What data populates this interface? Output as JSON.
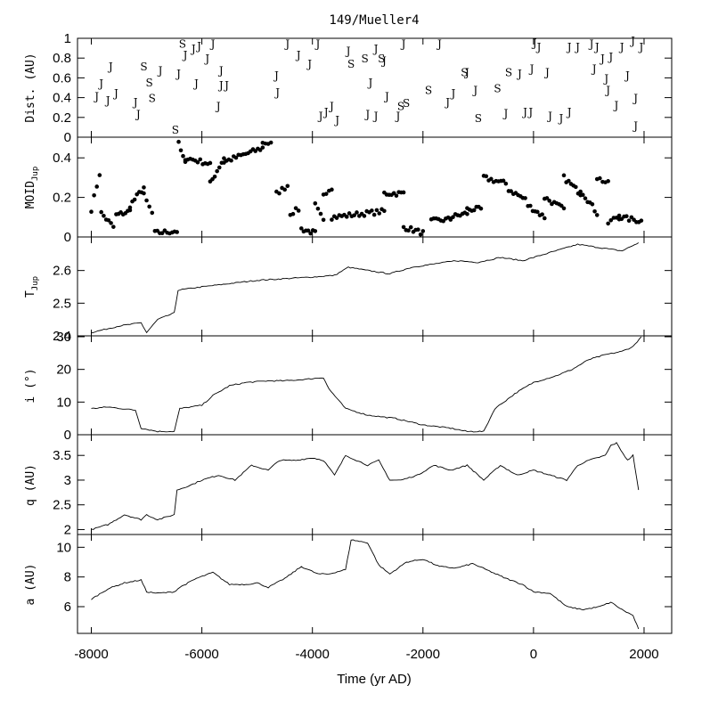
{
  "chart_data": {
    "type": "line",
    "title": "149/Mueller4",
    "xlabel": "Time (yr AD)",
    "xlim": [
      -8250,
      2500
    ],
    "xticks": [
      "-8000",
      "-6000",
      "-4000",
      "-2000",
      "0",
      "2000"
    ],
    "panels": [
      {
        "id": "encounters",
        "type": "scatter",
        "ylabel": "Dist. (AU)",
        "ylim": [
          0,
          1
        ],
        "yticks": [
          "0",
          "0.2",
          "0.4",
          "0.6",
          "0.8",
          "1"
        ],
        "markers_note": "J = Jupiter encounter, S = Saturn encounter",
        "points": [
          {
            "x": -7900,
            "y": 0.42,
            "l": "J"
          },
          {
            "x": -7820,
            "y": 0.55,
            "l": "J"
          },
          {
            "x": -7700,
            "y": 0.38,
            "l": "J"
          },
          {
            "x": -7650,
            "y": 0.72,
            "l": "J"
          },
          {
            "x": -7550,
            "y": 0.45,
            "l": "J"
          },
          {
            "x": -7200,
            "y": 0.36,
            "l": "J"
          },
          {
            "x": -7150,
            "y": 0.24,
            "l": "J"
          },
          {
            "x": -7050,
            "y": 0.72,
            "l": "S"
          },
          {
            "x": -6950,
            "y": 0.56,
            "l": "S"
          },
          {
            "x": -6900,
            "y": 0.4,
            "l": "S"
          },
          {
            "x": -6750,
            "y": 0.68,
            "l": "J"
          },
          {
            "x": -6480,
            "y": 0.08,
            "l": "S"
          },
          {
            "x": -6420,
            "y": 0.65,
            "l": "J"
          },
          {
            "x": -6350,
            "y": 0.95,
            "l": "S"
          },
          {
            "x": -6300,
            "y": 0.84,
            "l": "J"
          },
          {
            "x": -6150,
            "y": 0.9,
            "l": "J"
          },
          {
            "x": -6050,
            "y": 0.93,
            "l": "J"
          },
          {
            "x": -6100,
            "y": 0.55,
            "l": "J"
          },
          {
            "x": -5900,
            "y": 0.8,
            "l": "J"
          },
          {
            "x": -5800,
            "y": 0.95,
            "l": "J"
          },
          {
            "x": -5700,
            "y": 0.32,
            "l": "J"
          },
          {
            "x": -5650,
            "y": 0.68,
            "l": "J"
          },
          {
            "x": -5650,
            "y": 0.53,
            "l": "J"
          },
          {
            "x": -5550,
            "y": 0.53,
            "l": "J"
          },
          {
            "x": -4650,
            "y": 0.63,
            "l": "J"
          },
          {
            "x": -4630,
            "y": 0.46,
            "l": "J"
          },
          {
            "x": -4450,
            "y": 0.95,
            "l": "J"
          },
          {
            "x": -4250,
            "y": 0.84,
            "l": "J"
          },
          {
            "x": -4050,
            "y": 0.75,
            "l": "J"
          },
          {
            "x": -3900,
            "y": 0.95,
            "l": "J"
          },
          {
            "x": -3850,
            "y": 0.22,
            "l": "J"
          },
          {
            "x": -3750,
            "y": 0.26,
            "l": "J"
          },
          {
            "x": -3650,
            "y": 0.32,
            "l": "J"
          },
          {
            "x": -3550,
            "y": 0.18,
            "l": "J"
          },
          {
            "x": -3350,
            "y": 0.88,
            "l": "J"
          },
          {
            "x": -3300,
            "y": 0.75,
            "l": "S"
          },
          {
            "x": -3050,
            "y": 0.8,
            "l": "S"
          },
          {
            "x": -2950,
            "y": 0.56,
            "l": "J"
          },
          {
            "x": -3000,
            "y": 0.24,
            "l": "J"
          },
          {
            "x": -2850,
            "y": 0.22,
            "l": "J"
          },
          {
            "x": -2850,
            "y": 0.9,
            "l": "J"
          },
          {
            "x": -2750,
            "y": 0.8,
            "l": "S"
          },
          {
            "x": -2700,
            "y": 0.78,
            "l": "J"
          },
          {
            "x": -2650,
            "y": 0.42,
            "l": "J"
          },
          {
            "x": -2450,
            "y": 0.22,
            "l": "J"
          },
          {
            "x": -2400,
            "y": 0.32,
            "l": "S"
          },
          {
            "x": -2300,
            "y": 0.35,
            "l": "S"
          },
          {
            "x": -2350,
            "y": 0.95,
            "l": "J"
          },
          {
            "x": -1900,
            "y": 0.48,
            "l": "S"
          },
          {
            "x": -1700,
            "y": 0.95,
            "l": "J"
          },
          {
            "x": -1550,
            "y": 0.36,
            "l": "J"
          },
          {
            "x": -1450,
            "y": 0.45,
            "l": "J"
          },
          {
            "x": -1250,
            "y": 0.66,
            "l": "S"
          },
          {
            "x": -1200,
            "y": 0.66,
            "l": "J"
          },
          {
            "x": -1050,
            "y": 0.48,
            "l": "J"
          },
          {
            "x": -1000,
            "y": 0.2,
            "l": "S"
          },
          {
            "x": -650,
            "y": 0.5,
            "l": "S"
          },
          {
            "x": -500,
            "y": 0.25,
            "l": "J"
          },
          {
            "x": -450,
            "y": 0.66,
            "l": "S"
          },
          {
            "x": -250,
            "y": 0.65,
            "l": "J"
          },
          {
            "x": -150,
            "y": 0.26,
            "l": "J"
          },
          {
            "x": -50,
            "y": 0.26,
            "l": "J"
          },
          {
            "x": -30,
            "y": 0.7,
            "l": "J"
          },
          {
            "x": 20,
            "y": 0.96,
            "l": "J"
          },
          {
            "x": 100,
            "y": 0.92,
            "l": "J"
          },
          {
            "x": 250,
            "y": 0.66,
            "l": "J"
          },
          {
            "x": 300,
            "y": 0.22,
            "l": "J"
          },
          {
            "x": 500,
            "y": 0.2,
            "l": "J"
          },
          {
            "x": 650,
            "y": 0.26,
            "l": "J"
          },
          {
            "x": 650,
            "y": 0.92,
            "l": "J"
          },
          {
            "x": 800,
            "y": 0.92,
            "l": "J"
          },
          {
            "x": 1050,
            "y": 0.95,
            "l": "J"
          },
          {
            "x": 1150,
            "y": 0.92,
            "l": "J"
          },
          {
            "x": 1100,
            "y": 0.7,
            "l": "J"
          },
          {
            "x": 1250,
            "y": 0.8,
            "l": "J"
          },
          {
            "x": 1320,
            "y": 0.6,
            "l": "J"
          },
          {
            "x": 1350,
            "y": 0.48,
            "l": "J"
          },
          {
            "x": 1400,
            "y": 0.82,
            "l": "J"
          },
          {
            "x": 1500,
            "y": 0.33,
            "l": "J"
          },
          {
            "x": 1600,
            "y": 0.92,
            "l": "J"
          },
          {
            "x": 1700,
            "y": 0.63,
            "l": "J"
          },
          {
            "x": 1800,
            "y": 0.98,
            "l": "J"
          },
          {
            "x": 1850,
            "y": 0.4,
            "l": "J"
          },
          {
            "x": 1850,
            "y": 0.12,
            "l": "J"
          },
          {
            "x": 1950,
            "y": 0.92,
            "l": "J"
          }
        ]
      },
      {
        "id": "moid",
        "type": "scatter",
        "ylabel": "MOID",
        "ylabel_sub": "Jup",
        "ylim": [
          0,
          0.5
        ],
        "yticks": [
          "0",
          "0.2",
          "0.4"
        ],
        "segments": [
          {
            "x0": -8000,
            "x1": -7850,
            "y0": 0.14,
            "y1": 0.32
          },
          {
            "x0": -7820,
            "x1": -7600,
            "y0": 0.12,
            "y1": 0.05
          },
          {
            "x0": -7550,
            "x1": -7300,
            "y0": 0.11,
            "y1": 0.13
          },
          {
            "x0": -7300,
            "x1": -7050,
            "y0": 0.16,
            "y1": 0.25
          },
          {
            "x0": -7050,
            "x1": -6900,
            "y0": 0.21,
            "y1": 0.12
          },
          {
            "x0": -6850,
            "x1": -6450,
            "y0": 0.02,
            "y1": 0.03
          },
          {
            "x0": -6420,
            "x1": -6300,
            "y0": 0.47,
            "y1": 0.37
          },
          {
            "x0": -6300,
            "x1": -5850,
            "y0": 0.4,
            "y1": 0.37
          },
          {
            "x0": -5850,
            "x1": -5600,
            "y0": 0.27,
            "y1": 0.4
          },
          {
            "x0": -5600,
            "x1": -4900,
            "y0": 0.38,
            "y1": 0.45
          },
          {
            "x0": -4900,
            "x1": -4750,
            "y0": 0.48,
            "y1": 0.47
          },
          {
            "x0": -4650,
            "x1": -4450,
            "y0": 0.22,
            "y1": 0.26
          },
          {
            "x0": -4400,
            "x1": -4250,
            "y0": 0.12,
            "y1": 0.14
          },
          {
            "x0": -4200,
            "x1": -3950,
            "y0": 0.04,
            "y1": 0.02
          },
          {
            "x0": -3950,
            "x1": -3800,
            "y0": 0.16,
            "y1": 0.08
          },
          {
            "x0": -3800,
            "x1": -3650,
            "y0": 0.22,
            "y1": 0.25
          },
          {
            "x0": -3650,
            "x1": -2700,
            "y0": 0.1,
            "y1": 0.13
          },
          {
            "x0": -2700,
            "x1": -2350,
            "y0": 0.22,
            "y1": 0.22
          },
          {
            "x0": -2350,
            "x1": -2000,
            "y0": 0.05,
            "y1": 0.02
          },
          {
            "x0": -1850,
            "x1": -1500,
            "y0": 0.08,
            "y1": 0.09
          },
          {
            "x0": -1500,
            "x1": -1200,
            "y0": 0.1,
            "y1": 0.12
          },
          {
            "x0": -1200,
            "x1": -950,
            "y0": 0.14,
            "y1": 0.14
          },
          {
            "x0": -900,
            "x1": -500,
            "y0": 0.3,
            "y1": 0.27
          },
          {
            "x0": -450,
            "x1": -150,
            "y0": 0.24,
            "y1": 0.19
          },
          {
            "x0": -100,
            "x1": 200,
            "y0": 0.16,
            "y1": 0.1
          },
          {
            "x0": 200,
            "x1": 550,
            "y0": 0.2,
            "y1": 0.14
          },
          {
            "x0": 550,
            "x1": 850,
            "y0": 0.3,
            "y1": 0.22
          },
          {
            "x0": 850,
            "x1": 1150,
            "y0": 0.24,
            "y1": 0.12
          },
          {
            "x0": 1150,
            "x1": 1350,
            "y0": 0.3,
            "y1": 0.27
          },
          {
            "x0": 1350,
            "x1": 1550,
            "y0": 0.07,
            "y1": 0.11
          },
          {
            "x0": 1550,
            "x1": 1950,
            "y0": 0.1,
            "y1": 0.08
          }
        ]
      },
      {
        "id": "tjup",
        "type": "line",
        "ylabel": "T",
        "ylabel_sub": "Jup",
        "ylim": [
          2.4,
          2.7
        ],
        "yticks": [
          "2.4",
          "2.5",
          "2.6"
        ],
        "x": [
          -8000,
          -7500,
          -7100,
          -7000,
          -6800,
          -6500,
          -6430,
          -6000,
          -5500,
          -5000,
          -4500,
          -4000,
          -3600,
          -3350,
          -3000,
          -2600,
          -2200,
          -1800,
          -1400,
          -1000,
          -600,
          -200,
          0,
          400,
          800,
          1200,
          1600,
          1900
        ],
        "y": [
          2.41,
          2.43,
          2.44,
          2.41,
          2.45,
          2.47,
          2.54,
          2.55,
          2.56,
          2.57,
          2.575,
          2.58,
          2.585,
          2.61,
          2.6,
          2.59,
          2.61,
          2.62,
          2.63,
          2.625,
          2.64,
          2.63,
          2.64,
          2.66,
          2.68,
          2.67,
          2.66,
          2.685
        ]
      },
      {
        "id": "incl",
        "type": "line",
        "ylabel": "i (°)",
        "ylim": [
          0,
          30
        ],
        "yticks": [
          "0",
          "10",
          "20",
          "30"
        ],
        "x": [
          -8000,
          -7700,
          -7200,
          -7100,
          -6800,
          -6500,
          -6400,
          -6000,
          -5800,
          -5500,
          -5200,
          -4800,
          -4500,
          -4100,
          -3800,
          -3700,
          -3400,
          -3000,
          -2500,
          -2000,
          -1500,
          -1200,
          -900,
          -700,
          -300,
          0,
          400,
          700,
          1000,
          1300,
          1600,
          1800,
          1950
        ],
        "y": [
          8,
          8.5,
          7.5,
          2,
          1,
          1,
          8,
          9,
          12,
          15,
          16,
          16.5,
          16.5,
          17,
          17.5,
          14,
          8,
          6,
          5,
          3,
          2,
          1,
          1,
          8,
          13,
          16,
          18,
          20,
          23,
          24.5,
          25.5,
          27,
          30
        ]
      },
      {
        "id": "q",
        "type": "line",
        "ylabel": "q (AU)",
        "ylim": [
          1.9,
          3.9
        ],
        "yticks": [
          "2",
          "2.5",
          "3",
          "3.5"
        ],
        "x": [
          -8000,
          -7700,
          -7400,
          -7100,
          -7000,
          -6800,
          -6500,
          -6450,
          -6200,
          -6000,
          -5700,
          -5400,
          -5100,
          -4800,
          -4600,
          -4300,
          -4000,
          -3800,
          -3600,
          -3400,
          -3200,
          -3000,
          -2800,
          -2600,
          -2400,
          -2100,
          -1800,
          -1500,
          -1200,
          -900,
          -600,
          -300,
          0,
          300,
          600,
          800,
          1000,
          1300,
          1400,
          1500,
          1700,
          1800,
          1900
        ],
        "y": [
          2.0,
          2.1,
          2.3,
          2.2,
          2.3,
          2.2,
          2.3,
          2.8,
          2.9,
          3.0,
          3.1,
          3.0,
          3.3,
          3.2,
          3.4,
          3.4,
          3.45,
          3.4,
          3.1,
          3.5,
          3.4,
          3.3,
          3.4,
          3.0,
          3.0,
          3.1,
          3.3,
          3.2,
          3.3,
          3.0,
          3.3,
          3.1,
          3.2,
          3.1,
          3.0,
          3.3,
          3.4,
          3.5,
          3.7,
          3.75,
          3.4,
          3.5,
          2.8
        ]
      },
      {
        "id": "a",
        "type": "line",
        "ylabel": "a (AU)",
        "ylim": [
          4.2,
          10.8
        ],
        "yticks": [
          "6",
          "8",
          "10"
        ],
        "x": [
          -8000,
          -7700,
          -7400,
          -7100,
          -7000,
          -6800,
          -6500,
          -6400,
          -6100,
          -5800,
          -5500,
          -5200,
          -5000,
          -4800,
          -4500,
          -4200,
          -3900,
          -3700,
          -3400,
          -3300,
          -3000,
          -2800,
          -2600,
          -2300,
          -2000,
          -1700,
          -1400,
          -1100,
          -800,
          -500,
          -200,
          0,
          300,
          600,
          900,
          1200,
          1400,
          1600,
          1800,
          1900
        ],
        "y": [
          6.5,
          7.2,
          7.6,
          7.8,
          7.0,
          6.9,
          7.0,
          7.3,
          7.9,
          8.3,
          7.5,
          7.5,
          7.6,
          7.3,
          7.9,
          8.7,
          8.2,
          8.2,
          8.5,
          10.5,
          10.3,
          8.8,
          8.2,
          9.0,
          9.2,
          8.7,
          8.6,
          8.9,
          8.4,
          7.9,
          7.5,
          7.0,
          6.9,
          6.0,
          5.8,
          6.0,
          6.3,
          5.8,
          5.4,
          4.5
        ]
      }
    ]
  }
}
